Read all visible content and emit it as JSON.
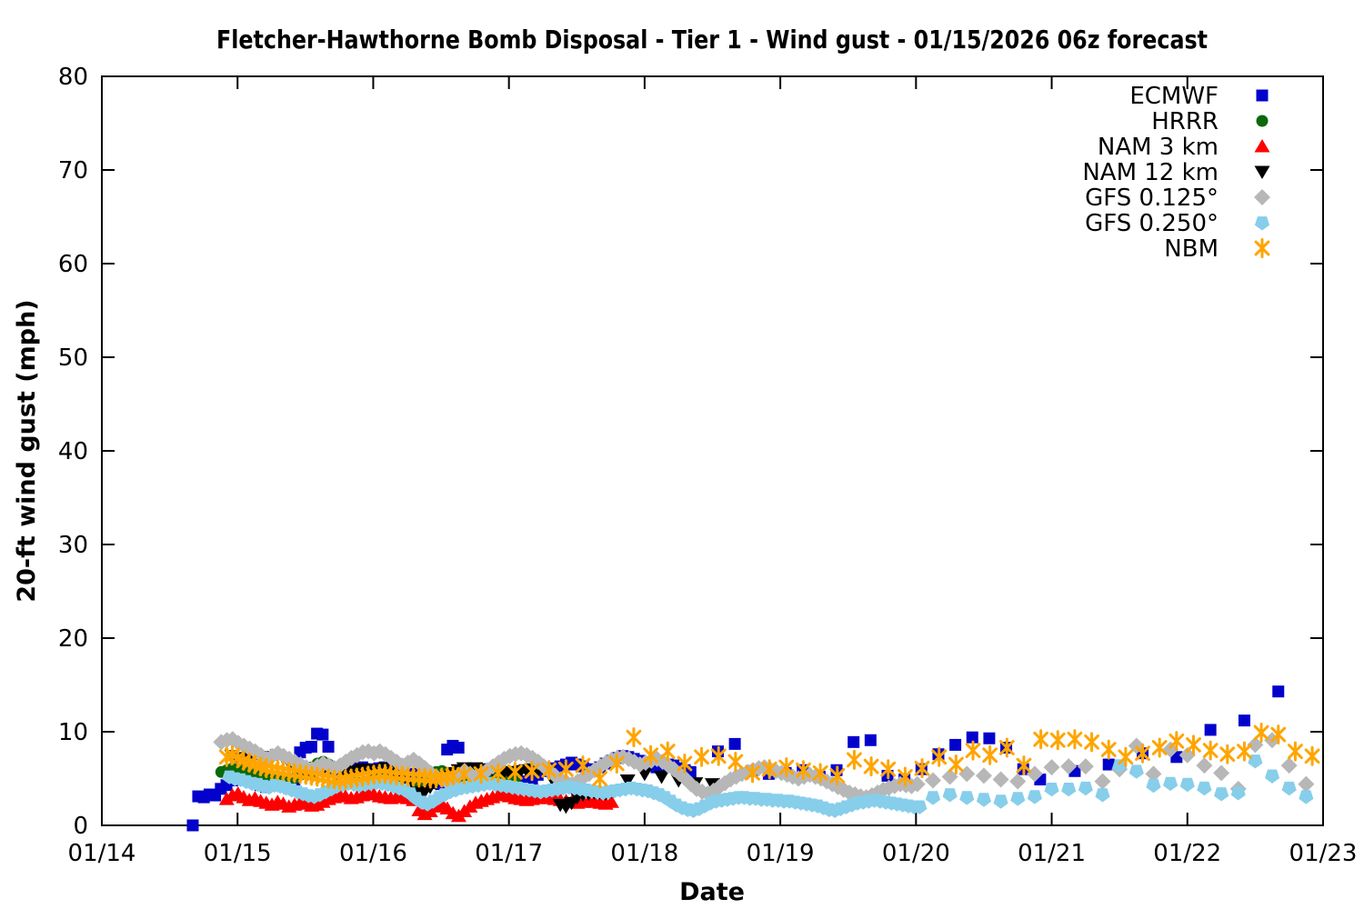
{
  "chart_data": {
    "type": "scatter",
    "title": "Fletcher-Hawthorne Bomb Disposal - Tier 1 - Wind gust - 01/15/2026 06z forecast",
    "xlabel": "Date",
    "ylabel": "20-ft wind gust (mph)",
    "x_unit": "fractional days after 01/14 00z",
    "xlim_days": [
      0,
      9
    ],
    "x_ticks": [
      {
        "day": 0,
        "label": "01/14"
      },
      {
        "day": 1,
        "label": "01/15"
      },
      {
        "day": 2,
        "label": "01/16"
      },
      {
        "day": 3,
        "label": "01/17"
      },
      {
        "day": 4,
        "label": "01/18"
      },
      {
        "day": 5,
        "label": "01/19"
      },
      {
        "day": 6,
        "label": "01/20"
      },
      {
        "day": 7,
        "label": "01/21"
      },
      {
        "day": 8,
        "label": "01/22"
      },
      {
        "day": 9,
        "label": "01/23"
      }
    ],
    "ylim": [
      0,
      80
    ],
    "y_ticks": [
      0,
      10,
      20,
      30,
      40,
      50,
      60,
      70,
      80
    ],
    "grid": false,
    "legend_position": "top-right-inside",
    "series": [
      {
        "name": "ECMWF",
        "marker": "square",
        "color": "#0202cc",
        "segments": [
          {
            "start": 0.67,
            "step": 0,
            "values": [
              0.0
            ]
          },
          {
            "start": 0.71,
            "step": 0.0417,
            "values": [
              3.1,
              3.0,
              3.3,
              3.2,
              3.9,
              4.3,
              4.8,
              5.2,
              5.4,
              5.3,
              4.7,
              4.3,
              4.1,
              4.4,
              4.5,
              4.2,
              4.0,
              4.2,
              7.8,
              8.3,
              8.4,
              9.8,
              9.7,
              8.4,
              5.7,
              5.4,
              5.6,
              5.9,
              6.1,
              6.2,
              6.0,
              5.9,
              6.1,
              6.2,
              5.9,
              5.6,
              5.4,
              5.3,
              5.5,
              5.4,
              5.1,
              4.8,
              4.5,
              4.4,
              8.1,
              8.5,
              8.3,
              5.7,
              5.9,
              6.0,
              5.8,
              5.4,
              5.1,
              4.8,
              4.5,
              4.4,
              4.3,
              4.5,
              4.7,
              5.0,
              5.4,
              5.8,
              6.1,
              6.0,
              6.3,
              6.5,
              6.7,
              6.5,
              6.3,
              6.0,
              5.9,
              6.2,
              6.6,
              6.9,
              7.2,
              7.4,
              7.3,
              7.1,
              6.9,
              6.7,
              6.4,
              6.2,
              6.3,
              6.5,
              6.4,
              6.1,
              5.9,
              5.7
            ]
          },
          {
            "start": 4.54,
            "step": 0.125,
            "values": [
              7.9,
              8.7,
              5.8,
              5.5,
              5.6,
              5.9,
              5.2,
              5.9,
              8.9,
              9.1,
              5.3,
              4.9,
              6.0,
              7.6,
              8.6,
              9.4,
              9.3,
              8.3,
              6.0,
              4.9
            ]
          },
          {
            "start": 7.17,
            "step": 0.25,
            "values": [
              5.8,
              6.5,
              7.7,
              7.3,
              10.2,
              11.2,
              14.3
            ]
          }
        ]
      },
      {
        "name": "HRRR",
        "marker": "circle",
        "color": "#0a690a",
        "segments": [
          {
            "start": 0.88,
            "step": 0.0417,
            "values": [
              5.7,
              5.9,
              6.1,
              6.0,
              5.8,
              5.6,
              5.4,
              5.2,
              5.1,
              5.3,
              5.2,
              5.0,
              4.9,
              5.1,
              5.4,
              5.8,
              6.2,
              6.6,
              6.8,
              6.5,
              6.0,
              5.5,
              5.1,
              4.8,
              4.6,
              4.5,
              4.7,
              4.9,
              5.1,
              5.2,
              5.0,
              4.7,
              4.4,
              4.3,
              4.5,
              4.8,
              5.2,
              5.5,
              5.7,
              5.8,
              5.6,
              5.3,
              4.9,
              4.6,
              4.4,
              4.5,
              4.7,
              5.0,
              5.2,
              5.3,
              5.2,
              5.1,
              5.0
            ]
          }
        ]
      },
      {
        "name": "NAM 3 km",
        "marker": "triangle-up",
        "color": "#ff0000",
        "segments": [
          {
            "start": 0.92,
            "step": 0.0417,
            "values": [
              2.8,
              3.2,
              3.4,
              3.0,
              2.7,
              2.9,
              2.6,
              2.4,
              2.2,
              2.5,
              2.3,
              2.0,
              2.2,
              2.4,
              2.3,
              2.1,
              2.2,
              2.5,
              2.8,
              3.0,
              3.2,
              3.1,
              2.9,
              3.0,
              3.2,
              3.4,
              3.3,
              3.1,
              3.0,
              2.9,
              3.0,
              3.1,
              2.9,
              2.7,
              1.6,
              1.2,
              1.5,
              2.0,
              2.3,
              1.8,
              1.3,
              1.0,
              1.5,
              2.0,
              2.4,
              2.6,
              2.8,
              3.0,
              3.2,
              3.3,
              3.1,
              2.9,
              2.8,
              2.7,
              2.8,
              2.9,
              3.0,
              2.9,
              2.8,
              2.7,
              2.6,
              2.5,
              2.4,
              2.5,
              2.6,
              2.5,
              2.4,
              2.3,
              2.5
            ]
          }
        ]
      },
      {
        "name": "NAM 12 km",
        "marker": "triangle-down",
        "color": "#000000",
        "segments": [
          {
            "start": 0.96,
            "step": 0.0417,
            "values": [
              7.4,
              7.2,
              7.0,
              7.2,
              7.4,
              7.3,
              7.1,
              7.3,
              7.5,
              7.2,
              6.8,
              6.3,
              5.8,
              5.5,
              5.3,
              5.6,
              5.9,
              6.1,
              5.8,
              5.5,
              5.3,
              5.6,
              5.8,
              6.0,
              5.9,
              5.7,
              5.9,
              6.1,
              5.8,
              5.5,
              5.2,
              4.2,
              3.5,
              3.2,
              3.6,
              4.1,
              4.5,
              4.8,
              5.2,
              5.6,
              5.9,
              6.1,
              6.0,
              6.1,
              6.0,
              5.9,
              6.0,
              5.9,
              5.7,
              5.6,
              5.7,
              5.8,
              5.9,
              6.0,
              5.9,
              6.0,
              5.8,
              4.5,
              2.2,
              2.0,
              2.4,
              3.0,
              3.3,
              3.4,
              3.5,
              3.5,
              3.4,
              3.6
            ]
          },
          {
            "start": 3.875,
            "step": 0.125,
            "values": [
              4.8,
              5.5,
              5.2,
              4.8,
              4.5,
              4.4
            ]
          }
        ]
      },
      {
        "name": "GFS 0.125°",
        "marker": "diamond",
        "color": "#b7b7b7",
        "segments": [
          {
            "start": 0.88,
            "step": 0.0417,
            "values": [
              8.9,
              9.1,
              9.2,
              8.8,
              8.5,
              8.2,
              7.9,
              7.5,
              7.1,
              7.4,
              7.7,
              7.4,
              7.1,
              6.8,
              6.5,
              6.2,
              6.0,
              6.3,
              6.6,
              6.4,
              6.1,
              6.4,
              6.8,
              7.2,
              7.5,
              7.8,
              7.9,
              7.7,
              7.9,
              7.6,
              7.2,
              6.8,
              6.4,
              6.7,
              7.0,
              6.6,
              6.1,
              5.6,
              5.2,
              4.9,
              4.6,
              5.0,
              5.4,
              5.8,
              5.5,
              5.2,
              5.5,
              5.9,
              6.3,
              6.7,
              7.1,
              7.4,
              7.6,
              7.7,
              7.5,
              7.2,
              6.8,
              6.3,
              5.8,
              5.3,
              4.9,
              4.6,
              4.4,
              4.7,
              5.1,
              5.5,
              5.9,
              6.3,
              6.7,
              7.0,
              7.2,
              7.3,
              7.1,
              6.8,
              6.5,
              6.7,
              6.9,
              7.1,
              6.8,
              6.4,
              6.0,
              5.5,
              5.0,
              4.4,
              3.9,
              3.6,
              3.4,
              3.7,
              4.1,
              4.5,
              4.9,
              5.2,
              5.5,
              5.7,
              5.9,
              6.1,
              6.2,
              6.0,
              5.8,
              5.6,
              5.4,
              5.2,
              5.0,
              5.2,
              5.4,
              5.2,
              5.0,
              4.7,
              4.4,
              4.1,
              3.8,
              3.5,
              3.3,
              3.1,
              3.0,
              3.2,
              3.5,
              3.8,
              4.0,
              4.2,
              4.4,
              4.3,
              4.2,
              4.4
            ]
          },
          {
            "start": 6.125,
            "step": 0.125,
            "values": [
              4.8,
              5.2,
              5.5,
              5.3,
              4.9,
              4.7,
              5.5,
              6.2,
              6.3,
              6.3,
              4.7,
              6.0,
              8.5,
              5.5,
              8.1,
              7.5,
              6.4,
              5.6,
              3.9,
              8.6,
              9.1,
              6.4,
              4.4
            ]
          }
        ]
      },
      {
        "name": "GFS 0.250°",
        "marker": "pentagon",
        "color": "#87ceeb",
        "segments": [
          {
            "start": 0.94,
            "step": 0.0417,
            "values": [
              5.2,
              5.0,
              4.9,
              4.7,
              4.5,
              4.4,
              4.2,
              4.1,
              4.3,
              4.2,
              4.0,
              3.8,
              3.6,
              3.4,
              3.2,
              3.1,
              3.3,
              3.6,
              3.9,
              4.2,
              4.4,
              4.5,
              4.4,
              4.3,
              4.4,
              4.5,
              4.6,
              4.5,
              4.4,
              4.2,
              4.0,
              3.8,
              3.4,
              2.9,
              2.5,
              2.3,
              2.6,
              3.0,
              3.3,
              3.6,
              3.8,
              4.0,
              4.1,
              4.2,
              4.3,
              4.4,
              4.5,
              4.4,
              4.3,
              4.2,
              4.1,
              4.0,
              3.9,
              3.8,
              3.7,
              3.6,
              3.7,
              3.8,
              3.9,
              4.0,
              4.1,
              4.0,
              3.9,
              3.8,
              3.7,
              3.6,
              3.5,
              3.6,
              3.7,
              3.8,
              3.9,
              4.0,
              3.9,
              3.8,
              3.7,
              3.5,
              3.3,
              3.0,
              2.6,
              2.2,
              1.9,
              1.7,
              1.6,
              1.8,
              2.1,
              2.4,
              2.6,
              2.7,
              2.8,
              2.9,
              3.0,
              3.0,
              2.9,
              2.9,
              2.8,
              2.8,
              2.7,
              2.7,
              2.6,
              2.6,
              2.5,
              2.4,
              2.3,
              2.2,
              2.1,
              1.9,
              1.7,
              1.6,
              1.8,
              2.0,
              2.2,
              2.4,
              2.5,
              2.6,
              2.7,
              2.6,
              2.5,
              2.4,
              2.3,
              2.2,
              2.1,
              2.0,
              2.0
            ]
          },
          {
            "start": 6.125,
            "step": 0.125,
            "values": [
              3.0,
              3.3,
              3.0,
              2.8,
              2.6,
              2.9,
              3.1,
              3.9,
              3.9,
              4.0,
              3.3,
              6.4,
              5.8,
              4.3,
              4.5,
              4.4,
              4.0,
              3.4,
              3.5,
              6.9,
              5.3,
              4.0,
              3.1
            ]
          }
        ]
      },
      {
        "name": "NBM",
        "marker": "asterisk",
        "color": "#ffa500",
        "segments": [
          {
            "start": 0.92,
            "step": 0.0417,
            "values": [
              7.3,
              7.5,
              7.2,
              6.9,
              6.7,
              6.5,
              6.3,
              6.1,
              6.0,
              5.9,
              5.8,
              5.7,
              5.6,
              5.5,
              5.4,
              5.3,
              5.2,
              5.1,
              5.0,
              4.9,
              4.8,
              4.9,
              5.0,
              5.1,
              5.2,
              5.3,
              5.4,
              5.5,
              5.5,
              5.4,
              5.3,
              5.3,
              5.2,
              5.2,
              5.1,
              5.1,
              5.0,
              5.0,
              5.1,
              5.2,
              5.3
            ]
          },
          {
            "start": 2.67,
            "step": 0.125,
            "values": [
              5.4,
              5.5,
              5.6,
              5.7,
              5.8,
              5.9,
              6.0,
              6.4,
              5.0,
              6.6,
              9.4,
              7.5,
              7.9,
              6.6,
              7.3,
              7.4,
              6.8,
              5.6,
              6.0,
              6.2,
              5.9,
              5.6,
              5.3,
              7.0,
              6.3,
              6.0,
              5.2,
              6.1,
              7.3,
              6.5,
              8.0,
              7.5,
              8.3,
              6.4,
              9.2,
              9.1,
              9.2,
              8.9,
              8.1,
              7.3,
              7.7,
              8.3,
              9.0,
              8.6,
              8.0,
              7.6,
              7.9,
              9.9,
              9.7,
              7.9,
              7.4
            ]
          }
        ]
      }
    ]
  }
}
